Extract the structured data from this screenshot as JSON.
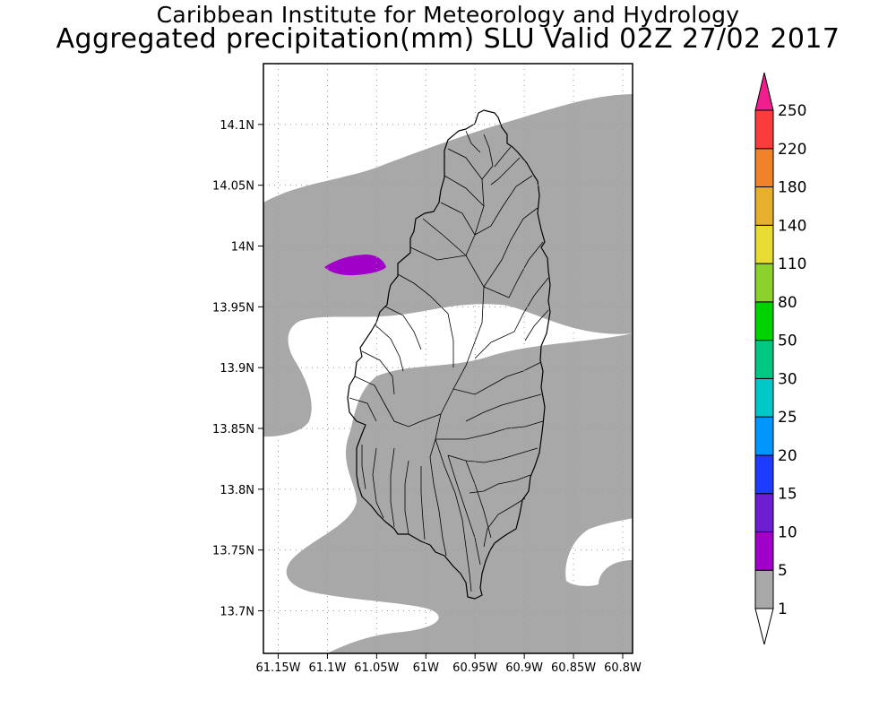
{
  "header": {
    "title_line1": "Caribbean Institute for Meteorology and Hydrology",
    "title_line2": "Aggregated precipitation(mm) SLU Valid 02Z 27/02 2017"
  },
  "map": {
    "lon_ticks": [
      "61.15W",
      "61.1W",
      "61.05W",
      "61W",
      "60.95W",
      "60.9W",
      "60.85W",
      "60.8W"
    ],
    "lat_ticks": [
      "14.1N",
      "14.05N",
      "14N",
      "13.95N",
      "13.9N",
      "13.85N",
      "13.8N",
      "13.75N",
      "13.7N"
    ],
    "lon_range": [
      -61.165,
      -60.79
    ],
    "lat_range": [
      13.665,
      14.15
    ],
    "grid": "dotted",
    "colors": {
      "precip_1_5": "#a8a8a8",
      "precip_5_10": "#a000c8",
      "land_outline": "#000000",
      "background": "#ffffff"
    }
  },
  "colorbar": {
    "levels": [
      "1",
      "5",
      "10",
      "15",
      "20",
      "25",
      "30",
      "50",
      "80",
      "110",
      "140",
      "180",
      "220",
      "250"
    ],
    "colors": [
      "#a8a8a8",
      "#a000c8",
      "#6e1ed2",
      "#1e3cff",
      "#0096ff",
      "#00c8c8",
      "#00c882",
      "#00d200",
      "#8cd22d",
      "#e6dc32",
      "#e6af2d",
      "#f08228",
      "#fa3c3c",
      "#f01e8c"
    ],
    "lower_color": "#ffffff",
    "upper_color": "#f01e8c"
  }
}
